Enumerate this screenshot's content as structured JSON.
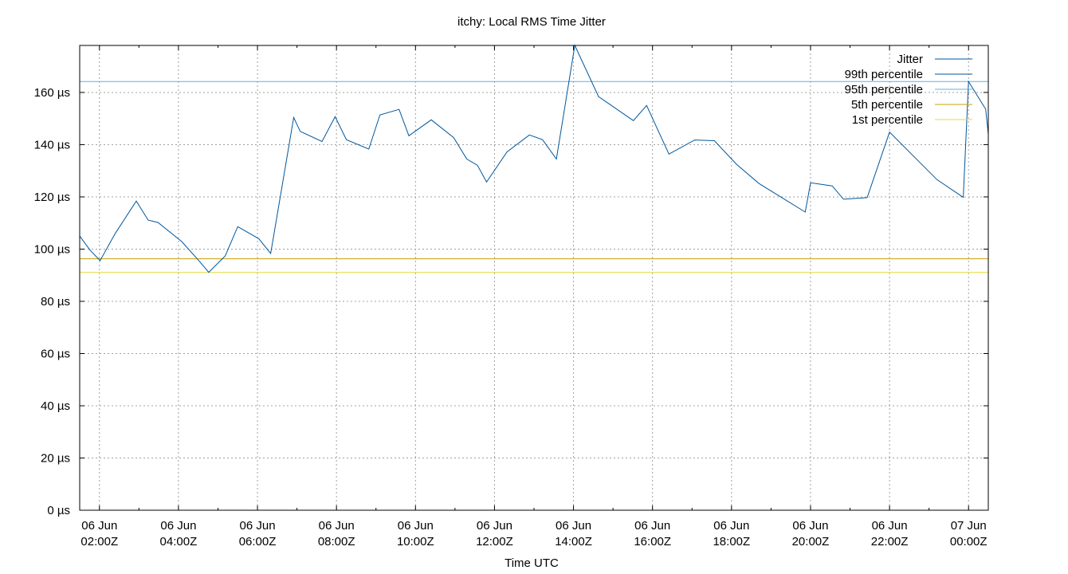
{
  "chart_data": {
    "type": "line",
    "title": "itchy: Local RMS Time Jitter",
    "xlabel": "Time UTC",
    "ylabel": "",
    "ylim": [
      0,
      178
    ],
    "xlim": [
      "2023-06-06T01:30Z",
      "2023-06-07T00:30Z"
    ],
    "grid": true,
    "legend_position": "top-right",
    "y_ticks": [
      {
        "value": 0,
        "label": "0 µs"
      },
      {
        "value": 20,
        "label": "20 µs"
      },
      {
        "value": 40,
        "label": "40 µs"
      },
      {
        "value": 60,
        "label": "60 µs"
      },
      {
        "value": 80,
        "label": "80 µs"
      },
      {
        "value": 100,
        "label": "100 µs"
      },
      {
        "value": 120,
        "label": "120 µs"
      },
      {
        "value": 140,
        "label": "140 µs"
      },
      {
        "value": 160,
        "label": "160 µs"
      }
    ],
    "x_ticks": [
      {
        "value": "2023-06-06T02:00Z",
        "line1": "06 Jun",
        "line2": "02:00Z"
      },
      {
        "value": "2023-06-06T04:00Z",
        "line1": "06 Jun",
        "line2": "04:00Z"
      },
      {
        "value": "2023-06-06T06:00Z",
        "line1": "06 Jun",
        "line2": "06:00Z"
      },
      {
        "value": "2023-06-06T08:00Z",
        "line1": "06 Jun",
        "line2": "08:00Z"
      },
      {
        "value": "2023-06-06T10:00Z",
        "line1": "06 Jun",
        "line2": "10:00Z"
      },
      {
        "value": "2023-06-06T12:00Z",
        "line1": "06 Jun",
        "line2": "12:00Z"
      },
      {
        "value": "2023-06-06T14:00Z",
        "line1": "06 Jun",
        "line2": "14:00Z"
      },
      {
        "value": "2023-06-06T16:00Z",
        "line1": "06 Jun",
        "line2": "16:00Z"
      },
      {
        "value": "2023-06-06T18:00Z",
        "line1": "06 Jun",
        "line2": "18:00Z"
      },
      {
        "value": "2023-06-06T20:00Z",
        "line1": "06 Jun",
        "line2": "20:00Z"
      },
      {
        "value": "2023-06-06T22:00Z",
        "line1": "06 Jun",
        "line2": "22:00Z"
      },
      {
        "value": "2023-06-07T00:00Z",
        "line1": "07 Jun",
        "line2": "00:00Z"
      }
    ],
    "series": [
      {
        "name": "Jitter",
        "color": "#00569b",
        "x": [
          "2023-06-06T01:30Z",
          "2023-06-06T01:46Z",
          "2023-06-06T02:01Z",
          "2023-06-06T02:24Z",
          "2023-06-06T02:56Z",
          "2023-06-06T03:14Z",
          "2023-06-06T03:29Z",
          "2023-06-06T04:05Z",
          "2023-06-06T04:31Z",
          "2023-06-06T04:46Z",
          "2023-06-06T05:11Z",
          "2023-06-06T05:30Z",
          "2023-06-06T06:02Z",
          "2023-06-06T06:20Z",
          "2023-06-06T06:55Z",
          "2023-06-06T07:05Z",
          "2023-06-06T07:38Z",
          "2023-06-06T07:58Z",
          "2023-06-06T08:15Z",
          "2023-06-06T08:49Z",
          "2023-06-06T09:06Z",
          "2023-06-06T09:35Z",
          "2023-06-06T09:50Z",
          "2023-06-06T10:24Z",
          "2023-06-06T10:58Z",
          "2023-06-06T11:18Z",
          "2023-06-06T11:34Z",
          "2023-06-06T11:48Z",
          "2023-06-06T12:19Z",
          "2023-06-06T12:53Z",
          "2023-06-06T13:13Z",
          "2023-06-06T13:34Z",
          "2023-06-06T14:02Z",
          "2023-06-06T14:38Z",
          "2023-06-06T15:31Z",
          "2023-06-06T15:51Z",
          "2023-06-06T16:25Z",
          "2023-06-06T17:04Z",
          "2023-06-06T17:34Z",
          "2023-06-06T18:08Z",
          "2023-06-06T18:42Z",
          "2023-06-06T19:52Z",
          "2023-06-06T20:00Z",
          "2023-06-06T20:33Z",
          "2023-06-06T20:50Z",
          "2023-06-06T21:26Z",
          "2023-06-06T22:00Z",
          "2023-06-06T22:38Z",
          "2023-06-06T23:12Z",
          "2023-06-06T23:52Z",
          "2023-06-07T00:00Z",
          "2023-06-07T00:26Z",
          "2023-06-07T00:30Z"
        ],
        "y": [
          105.0,
          99.5,
          95.6,
          106.0,
          118.4,
          111.1,
          110.2,
          102.9,
          95.6,
          91.1,
          97.4,
          108.6,
          104.0,
          98.3,
          150.4,
          145.1,
          141.2,
          150.7,
          141.9,
          138.3,
          151.4,
          153.5,
          143.4,
          149.5,
          142.7,
          134.5,
          132.1,
          125.7,
          137.2,
          143.7,
          141.9,
          134.5,
          178.0,
          158.4,
          149.2,
          155.0,
          136.4,
          141.8,
          141.5,
          132.4,
          125.1,
          114.2,
          125.4,
          124.2,
          119.1,
          119.7,
          144.8,
          135.2,
          126.6,
          119.8,
          164.2,
          153.6,
          144.0
        ]
      },
      {
        "name": "99th percentile",
        "color": "#00569b",
        "value": 178.0
      },
      {
        "name": "95th percentile",
        "color": "#56b4e9",
        "value": 164.2
      },
      {
        "name": "5th percentile",
        "color": "#c8a000",
        "value": 96.3
      },
      {
        "name": "1st percentile",
        "color": "#e6db40",
        "value": 91.1
      }
    ]
  }
}
